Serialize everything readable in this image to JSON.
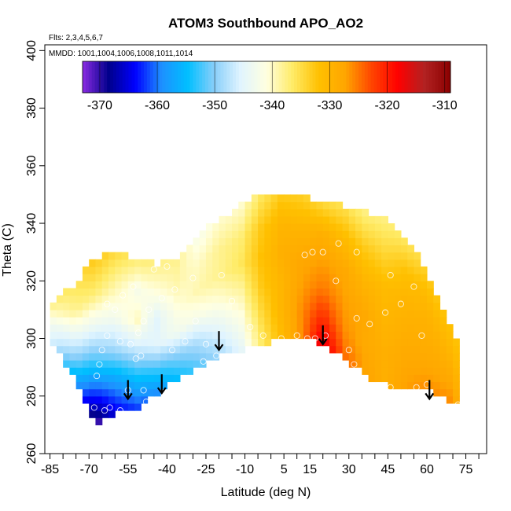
{
  "chart_data": {
    "type": "heatmap",
    "title": "ATOM3 Southbound APO_AO2",
    "subtitle_flights": "Flts: 2,3,4,5,6,7",
    "subtitle_dates": "MMDD: 1001,1004,1006,1008,1011,1014",
    "xlabel": "Latitude (deg N)",
    "ylabel": "Theta (C)",
    "xlim": [
      -87,
      83
    ],
    "ylim": [
      260,
      402
    ],
    "x_ticks": [
      -85,
      -70,
      -55,
      -40,
      -25,
      -10,
      5,
      15,
      30,
      45,
      60,
      75
    ],
    "x_minor_ticks": [
      -80,
      -75,
      -65,
      -60,
      -50,
      -45,
      -35,
      -30,
      -20,
      -15,
      -5,
      0,
      10,
      20,
      25,
      35,
      40,
      50,
      55,
      65,
      70,
      80
    ],
    "y_ticks": [
      260,
      280,
      300,
      320,
      340,
      360,
      380,
      400
    ],
    "colorbar": {
      "range": [
        -373,
        -309
      ],
      "ticks": [
        -370,
        -360,
        -350,
        -340,
        -330,
        -320,
        -310
      ],
      "colors": [
        "#8a2be2",
        "#00008b",
        "#0000ff",
        "#1e90ff",
        "#00bfff",
        "#87cefa",
        "#e0f4ff",
        "#ffffe0",
        "#ffeb66",
        "#ffc000",
        "#ffa500",
        "#ff4500",
        "#ff0000",
        "#b22222",
        "#8b0000"
      ]
    },
    "grid": [
      {
        "lat": -85,
        "bottom": 300,
        "top": 311,
        "values": [
          -345,
          -343,
          -338
        ]
      },
      {
        "lat": -75,
        "bottom": 285,
        "top": 318,
        "values": [
          -358,
          -350,
          -344,
          -338,
          -336
        ]
      },
      {
        "lat": -68,
        "bottom": 270,
        "top": 327,
        "values": [
          -372,
          -362,
          -352,
          -344,
          -337,
          -333
        ]
      },
      {
        "lat": -60,
        "bottom": 274,
        "top": 329,
        "values": [
          -365,
          -358,
          -349,
          -343,
          -339,
          -335
        ]
      },
      {
        "lat": -52,
        "bottom": 276,
        "top": 327,
        "values": [
          -362,
          -355,
          -347,
          -340,
          -342,
          -337
        ]
      },
      {
        "lat": -44,
        "bottom": 280,
        "top": 325,
        "values": [
          -360,
          -353,
          -345,
          -345,
          -341,
          -338
        ]
      },
      {
        "lat": -36,
        "bottom": 286,
        "top": 327,
        "values": [
          -355,
          -350,
          -343,
          -341,
          -339,
          -338
        ]
      },
      {
        "lat": -28,
        "bottom": 290,
        "top": 335,
        "values": [
          -352,
          -348,
          -342,
          -339,
          -340,
          -342
        ]
      },
      {
        "lat": -20,
        "bottom": 294,
        "top": 340,
        "values": [
          -349,
          -345,
          -341,
          -338,
          -338,
          -340
        ]
      },
      {
        "lat": -12,
        "bottom": 296,
        "top": 345,
        "values": [
          -345,
          -342,
          -339,
          -336,
          -337,
          -340
        ]
      },
      {
        "lat": -4,
        "bottom": 298,
        "top": 349,
        "values": [
          -337,
          -335,
          -333,
          -332,
          -333,
          -336
        ]
      },
      {
        "lat": 4,
        "bottom": 300,
        "top": 350,
        "values": [
          -331,
          -330,
          -330,
          -329,
          -330,
          -333
        ]
      },
      {
        "lat": 12,
        "bottom": 300,
        "top": 348,
        "values": [
          -326,
          -326,
          -327,
          -328,
          -330,
          -333
        ]
      },
      {
        "lat": 20,
        "bottom": 298,
        "top": 346,
        "values": [
          -316,
          -321,
          -325,
          -327,
          -329,
          -334
        ]
      },
      {
        "lat": 28,
        "bottom": 294,
        "top": 345,
        "values": [
          -324,
          -326,
          -327,
          -328,
          -331,
          -335
        ]
      },
      {
        "lat": 36,
        "bottom": 287,
        "top": 343,
        "values": [
          -327,
          -328,
          -328,
          -330,
          -333,
          -337
        ]
      },
      {
        "lat": 44,
        "bottom": 284,
        "top": 340,
        "values": [
          -329,
          -329,
          -330,
          -331,
          -334,
          -337
        ]
      },
      {
        "lat": 52,
        "bottom": 283,
        "top": 334,
        "values": [
          -327,
          -328,
          -329,
          -330,
          -332,
          -336
        ]
      },
      {
        "lat": 60,
        "bottom": 282,
        "top": 322,
        "values": [
          -326,
          -328,
          -329,
          -330,
          -333
        ]
      },
      {
        "lat": 68,
        "bottom": 278,
        "top": 306,
        "values": [
          -326,
          -328,
          -330,
          -332
        ]
      },
      {
        "lat": 72,
        "bottom": 276,
        "top": 297,
        "values": [
          -328,
          -330,
          -332
        ]
      }
    ],
    "observation_points": [
      [
        -68,
        276
      ],
      [
        -67,
        287
      ],
      [
        -66,
        291
      ],
      [
        -65,
        296
      ],
      [
        -63,
        301
      ],
      [
        -64,
        275
      ],
      [
        -62,
        276
      ],
      [
        -58,
        275
      ],
      [
        -55,
        282
      ],
      [
        -52,
        293
      ],
      [
        -50,
        294
      ],
      [
        -49,
        282
      ],
      [
        -48,
        278
      ],
      [
        -58,
        299
      ],
      [
        -54,
        298
      ],
      [
        -51,
        302
      ],
      [
        -63,
        312
      ],
      [
        -60,
        310
      ],
      [
        -57,
        315
      ],
      [
        -53,
        318
      ],
      [
        -49,
        306
      ],
      [
        -47,
        310
      ],
      [
        -42,
        314
      ],
      [
        -38,
        296
      ],
      [
        -33,
        299
      ],
      [
        -29,
        306
      ],
      [
        -25,
        298
      ],
      [
        -26,
        292
      ],
      [
        -21,
        294
      ],
      [
        -19,
        322
      ],
      [
        -15,
        313
      ],
      [
        -8,
        304
      ],
      [
        -3,
        301
      ],
      [
        4,
        300
      ],
      [
        10,
        301
      ],
      [
        14,
        300
      ],
      [
        17,
        300
      ],
      [
        21,
        301
      ],
      [
        13,
        329
      ],
      [
        16,
        330
      ],
      [
        20,
        330
      ],
      [
        26,
        333
      ],
      [
        30,
        296
      ],
      [
        32,
        291
      ],
      [
        36,
        286
      ],
      [
        46,
        283
      ],
      [
        56,
        283
      ],
      [
        58,
        301
      ],
      [
        60,
        284
      ],
      [
        72,
        277
      ],
      [
        25,
        320
      ],
      [
        33,
        307
      ],
      [
        38,
        305
      ],
      [
        44,
        309
      ],
      [
        50,
        312
      ],
      [
        55,
        318
      ],
      [
        46,
        322
      ],
      [
        33,
        330
      ],
      [
        -45,
        324
      ],
      [
        -40,
        325
      ],
      [
        -37,
        317
      ],
      [
        -30,
        321
      ]
    ],
    "arrow_latitudes": [
      -55,
      -42,
      -20,
      20,
      61
    ],
    "arrow_thetas": [
      279,
      281,
      296,
      298,
      279
    ]
  }
}
